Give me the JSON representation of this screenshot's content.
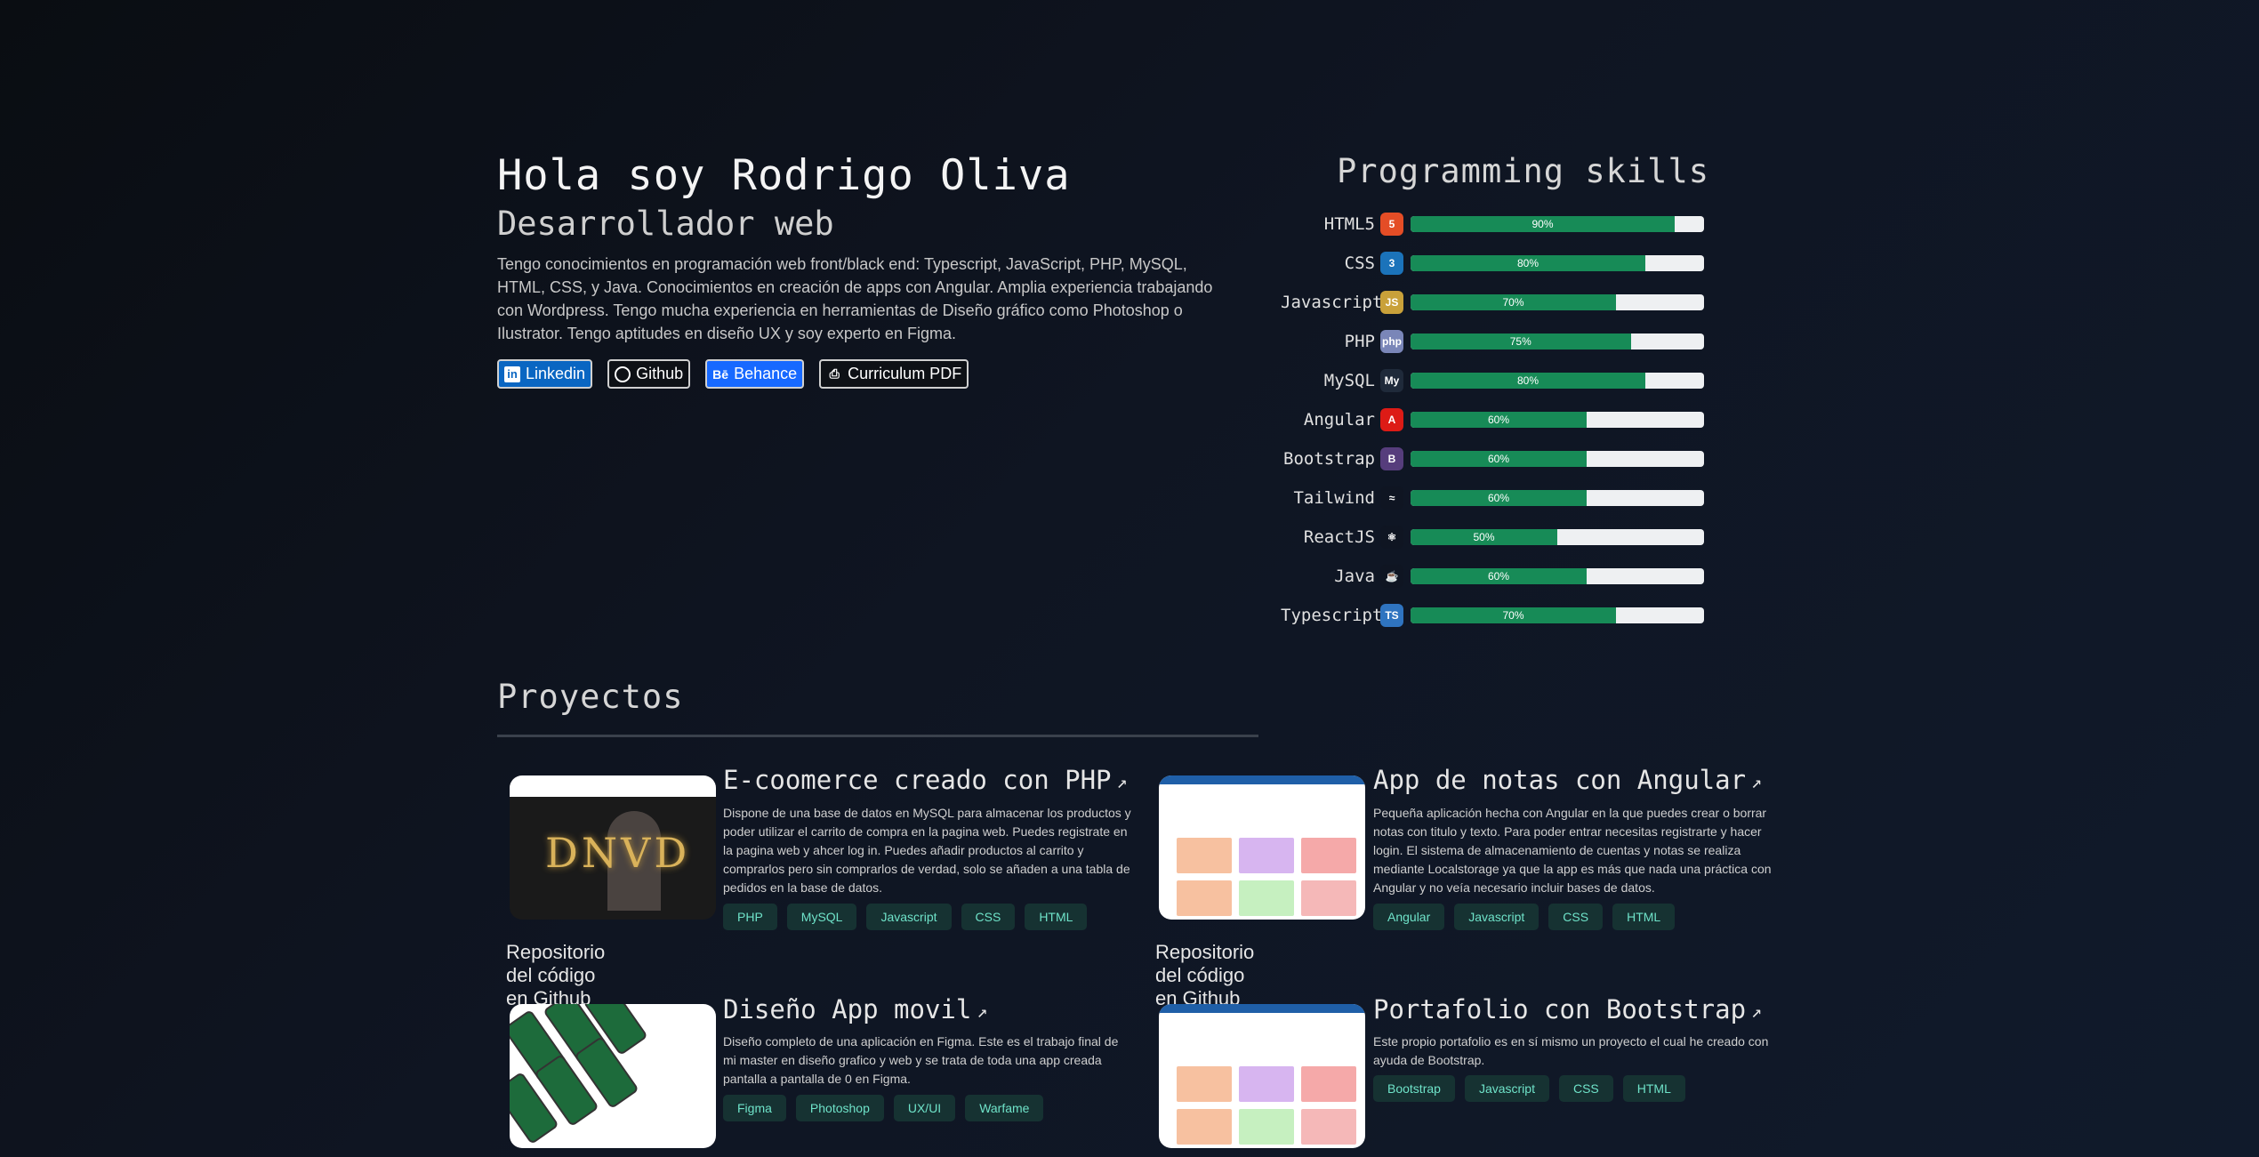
{
  "hero": {
    "title": "Hola soy Rodrigo Oliva",
    "subtitle": "Desarrollador web",
    "description": "Tengo conocimientos en programación web front/black end: Typescript, JavaScript, PHP, MySQL, HTML, CSS, y Java. Conocimientos en creación de apps con Angular. Amplia experiencia trabajando con Wordpress. Tengo mucha experiencia en herramientas de Diseño gráfico como Photoshop o Ilustrator. Tengo aptitudes en diseño UX y soy experto en Figma.",
    "links": [
      {
        "label": "Linkedin",
        "icon": "linkedin-icon",
        "glyph": "in"
      },
      {
        "label": "Github",
        "icon": "github-icon",
        "glyph": ""
      },
      {
        "label": "Behance",
        "icon": "behance-icon",
        "glyph": "Bē"
      },
      {
        "label": "Curriculum PDF",
        "icon": "pdf-icon",
        "glyph": "⎙"
      }
    ]
  },
  "skills": {
    "title": "Programming skills",
    "items": [
      {
        "name": "HTML5",
        "percent": 90,
        "label": "90%",
        "icon": "html5-icon",
        "glyph": "5",
        "color": "#e44d26"
      },
      {
        "name": "CSS",
        "percent": 80,
        "label": "80%",
        "icon": "css3-icon",
        "glyph": "3",
        "color": "#1b73ba"
      },
      {
        "name": "Javascript",
        "percent": 70,
        "label": "70%",
        "icon": "javascript-icon",
        "glyph": "JS",
        "color": "#c9a13a"
      },
      {
        "name": "PHP",
        "percent": 75,
        "label": "75%",
        "icon": "php-icon",
        "glyph": "php",
        "color": "#7a86b8"
      },
      {
        "name": "MySQL",
        "percent": 80,
        "label": "80%",
        "icon": "mysql-icon",
        "glyph": "My",
        "color": "#1f2a3a"
      },
      {
        "name": "Angular",
        "percent": 60,
        "label": "60%",
        "icon": "angular-icon",
        "glyph": "A",
        "color": "#dd1b16"
      },
      {
        "name": "Bootstrap",
        "percent": 60,
        "label": "60%",
        "icon": "bootstrap-icon",
        "glyph": "B",
        "color": "#563d7c"
      },
      {
        "name": "Tailwind",
        "percent": 60,
        "label": "60%",
        "icon": "tailwind-icon",
        "glyph": "≈",
        "color": "#0f1522"
      },
      {
        "name": "ReactJS",
        "percent": 50,
        "label": "50%",
        "icon": "react-icon",
        "glyph": "⚛",
        "color": "#0f1522"
      },
      {
        "name": "Java",
        "percent": 60,
        "label": "60%",
        "icon": "java-icon",
        "glyph": "☕",
        "color": "#0f1522"
      },
      {
        "name": "Typescript",
        "percent": 70,
        "label": "70%",
        "icon": "typescript-icon",
        "glyph": "TS",
        "color": "#2f74c0"
      }
    ]
  },
  "projects": {
    "title": "Proyectos",
    "repo_label": "Repositorio del código en Github",
    "items": [
      {
        "title": "E-coomerce creado con PHP",
        "description": "Dispone de una base de datos en MySQL para almacenar los productos y poder utilizar el carrito de compra en la pagina web. Puedes registrate en la pagina web y ahcer log in. Puedes añadir productos al carrito y comprarlos pero sin comprarlos de verdad, solo se añaden a una tabla de pedidos en la base de datos.",
        "tags": [
          "PHP",
          "MySQL",
          "Javascript",
          "CSS",
          "HTML"
        ],
        "thumb_text": "DNVD"
      },
      {
        "title": "App de notas con Angular",
        "description": "Pequeña aplicación hecha con Angular en la que puedes crear o borrar notas con titulo y texto. Para poder entrar necesitas registrarte y hacer login. El sistema de almacenamiento de cuentas y notas se realiza mediante Localstorage ya que la app es más que nada una práctica con Angular y no veía necesario incluir bases de datos.",
        "tags": [
          "Angular",
          "Javascript",
          "CSS",
          "HTML"
        ]
      },
      {
        "title": "Diseño App movil",
        "description": "Diseño completo de una aplicación en Figma. Este es el trabajo final de mi master en diseño grafico y web y se trata de toda una app creada pantalla a pantalla de 0 en Figma.",
        "tags": [
          "Figma",
          "Photoshop",
          "UX/UI",
          "Warfame"
        ]
      },
      {
        "title": "Portafolio con Bootstrap",
        "description": "Este propio portafolio es en sí mismo un proyecto el cual he creado con ayuda de Bootstrap.",
        "tags": [
          "Bootstrap",
          "Javascript",
          "CSS",
          "HTML"
        ]
      }
    ]
  },
  "colors": {
    "bar_fill": "#178b57",
    "tag_bg": "#163232",
    "tag_text": "#6fe3c9"
  }
}
